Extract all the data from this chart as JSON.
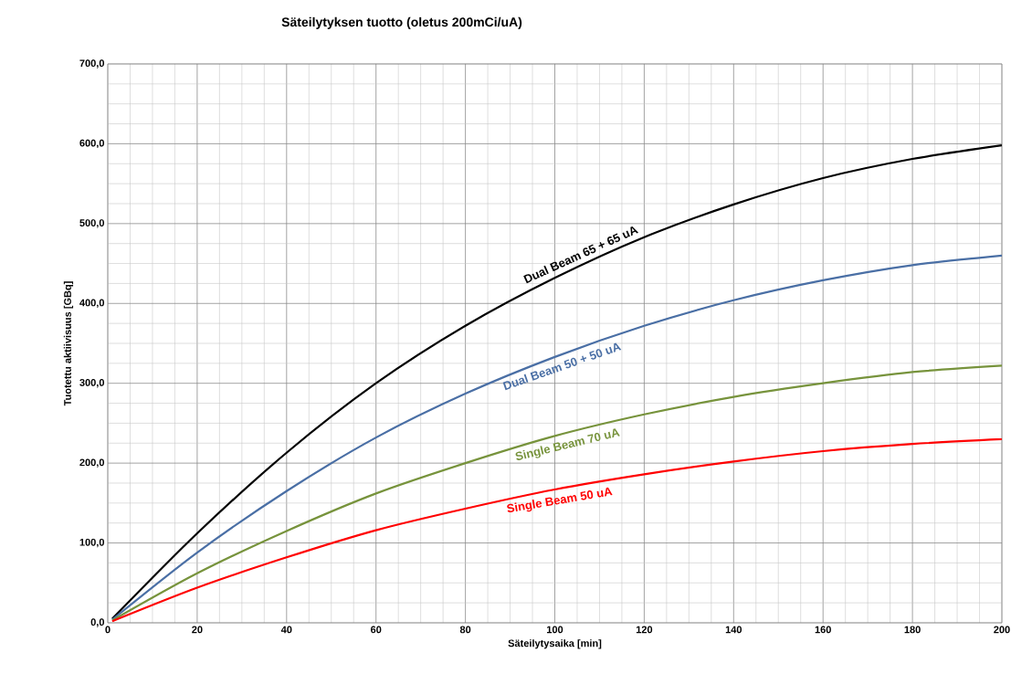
{
  "chart_data": {
    "type": "line",
    "title": "Säteilytyksen tuotto (oletus 200mCi/uA)",
    "xlabel": "Säteilytysaika [min]",
    "ylabel": "Tuotettu aktiivisuus [GBq]",
    "x": [
      1,
      20,
      40,
      60,
      80,
      100,
      120,
      140,
      160,
      180,
      200
    ],
    "series": [
      {
        "name": "Dual Beam 65 + 65 uA",
        "color": "#000000",
        "values": [
          5,
          112,
          213,
          300,
          372,
          432,
          483,
          524,
          557,
          581,
          598
        ]
      },
      {
        "name": "Dual Beam 50 + 50 uA",
        "color": "#4a6fa5",
        "values": [
          4,
          88,
          165,
          232,
          287,
          333,
          372,
          404,
          429,
          448,
          460
        ]
      },
      {
        "name": "Single Beam 70 uA",
        "color": "#77933c",
        "values": [
          3,
          62,
          115,
          162,
          200,
          234,
          261,
          283,
          300,
          314,
          322
        ]
      },
      {
        "name": "Single Beam 50 uA",
        "color": "#ff0000",
        "values": [
          2,
          44,
          82,
          116,
          143,
          167,
          186,
          202,
          215,
          224,
          230
        ]
      }
    ],
    "xlim": [
      0,
      200
    ],
    "ylim": [
      0,
      700
    ],
    "xticks": [
      0,
      20,
      40,
      60,
      80,
      100,
      120,
      140,
      160,
      180,
      200
    ],
    "yticks": [
      {
        "value": 0,
        "label": "0,0"
      },
      {
        "value": 100,
        "label": "100,0"
      },
      {
        "value": 200,
        "label": "200,0"
      },
      {
        "value": 300,
        "label": "300,0"
      },
      {
        "value": 400,
        "label": "400,0"
      },
      {
        "value": 500,
        "label": "500,0"
      },
      {
        "value": 600,
        "label": "600,0"
      },
      {
        "value": 700,
        "label": "700,0"
      }
    ],
    "grid": true,
    "marker": "none",
    "line_style": "solid"
  }
}
